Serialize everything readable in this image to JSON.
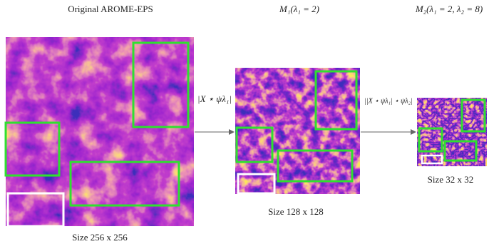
{
  "panels": [
    {
      "title": "Original AROME-EPS",
      "size_label": "Size 256 x 256"
    },
    {
      "title": "M₁(λ₁ = 2)",
      "size_label": "Size 128 x 128"
    },
    {
      "title": "M₂(λ₁ = 2, λ₂ = 8)",
      "size_label": "Size 32 x 32"
    }
  ],
  "arrows": [
    {
      "label": "|X ⋆ ψλ₁|"
    },
    {
      "label": "||X ⋆ ψλ₁| ⋆ ψλ₂|"
    }
  ]
}
